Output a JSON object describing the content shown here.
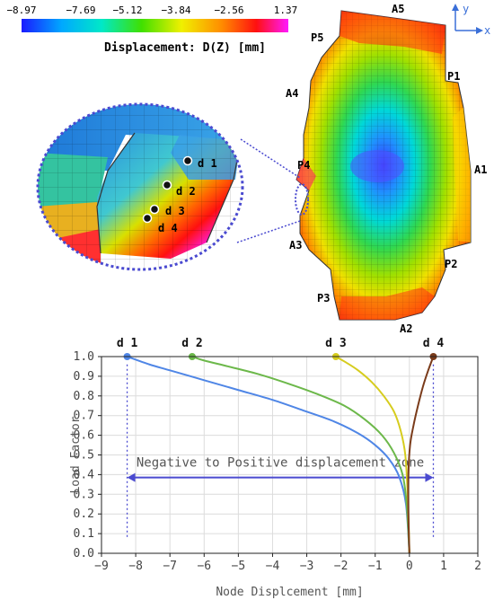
{
  "colorbar": {
    "ticks": [
      "−8.97",
      "−7.69",
      "−5.12",
      "−3.84",
      "−2.56",
      "1.37"
    ],
    "title": "Displacement: D(Z) [mm]",
    "stops": [
      "#1a1aff",
      "#00a8ff",
      "#00e8c8",
      "#40e000",
      "#f0f000",
      "#ff8c00",
      "#ff1010",
      "#ff1aff"
    ]
  },
  "axes_triad": {
    "y_label": "y",
    "x_label": "x"
  },
  "model_labels": [
    "A5",
    "P5",
    "P1",
    "A4",
    "A1",
    "P4",
    "A3",
    "P2",
    "P3",
    "A2"
  ],
  "zoom_labels": [
    "d 1",
    "d 2",
    "d 3",
    "d 4"
  ],
  "chart_data": {
    "type": "line",
    "title": "",
    "xlabel": "Node Displcement [mm]",
    "ylabel": "Load Factor",
    "xlim": [
      -9,
      2
    ],
    "ylim": [
      0,
      1
    ],
    "xticks": [
      "−9",
      "−8",
      "−7",
      "−6",
      "−5",
      "−4",
      "−3",
      "−2",
      "−1",
      "0",
      "1",
      "2"
    ],
    "yticks": [
      "0.0",
      "0.1",
      "0.2",
      "0.3",
      "0.4",
      "0.5",
      "0.6",
      "0.7",
      "0.8",
      "0.9",
      "1.0"
    ],
    "grid": true,
    "series": [
      {
        "name": "d 1",
        "color": "#4f86e6",
        "x": [
          0,
          -0.1,
          -0.3,
          -0.6,
          -1.0,
          -1.5,
          -2.2,
          -3.0,
          -4.0,
          -5.0,
          -6.0,
          -7.0,
          -7.6,
          -8.25
        ],
        "y": [
          0.0,
          0.25,
          0.39,
          0.48,
          0.55,
          0.61,
          0.67,
          0.72,
          0.78,
          0.83,
          0.88,
          0.93,
          0.96,
          1.0
        ]
      },
      {
        "name": "d 2",
        "color": "#6cb84a",
        "x": [
          0,
          -0.08,
          -0.2,
          -0.45,
          -0.8,
          -1.3,
          -1.9,
          -2.7,
          -3.5,
          -4.4,
          -5.3,
          -6.0,
          -6.35
        ],
        "y": [
          0.0,
          0.25,
          0.4,
          0.51,
          0.6,
          0.68,
          0.75,
          0.81,
          0.86,
          0.91,
          0.95,
          0.98,
          1.0
        ]
      },
      {
        "name": "d 3",
        "color": "#d6cc1e",
        "x": [
          0,
          -0.05,
          -0.12,
          -0.25,
          -0.45,
          -0.75,
          -1.1,
          -1.5,
          -1.85,
          -2.15
        ],
        "y": [
          0.0,
          0.3,
          0.5,
          0.62,
          0.72,
          0.8,
          0.87,
          0.93,
          0.97,
          1.0
        ]
      },
      {
        "name": "d 4",
        "color": "#7a3b1a",
        "x": [
          0,
          -0.03,
          -0.03,
          0.02,
          0.12,
          0.25,
          0.4,
          0.55,
          0.7
        ],
        "y": [
          0.0,
          0.2,
          0.4,
          0.55,
          0.65,
          0.75,
          0.85,
          0.93,
          1.0
        ]
      }
    ],
    "zone": {
      "label": "Negative to Positive displacement zone",
      "x_from": -8.25,
      "x_to": 0.7,
      "y": 0.385
    }
  }
}
